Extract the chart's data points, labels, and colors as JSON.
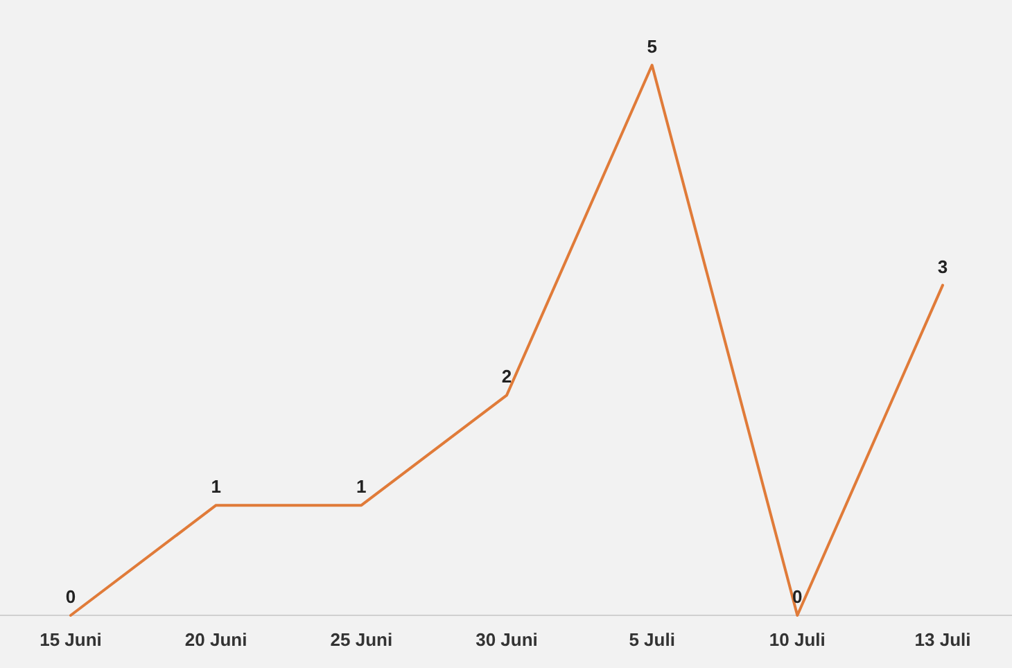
{
  "chart_data": {
    "type": "line",
    "categories": [
      "15 Juni",
      "20 Juni",
      "25 Juni",
      "30 Juni",
      "5 Juli",
      "10 Juli",
      "13 Juli"
    ],
    "series": [
      {
        "color": "#e07b39",
        "values": [
          0,
          1,
          1,
          2,
          5,
          0,
          3
        ]
      }
    ],
    "data_labels": true
  }
}
